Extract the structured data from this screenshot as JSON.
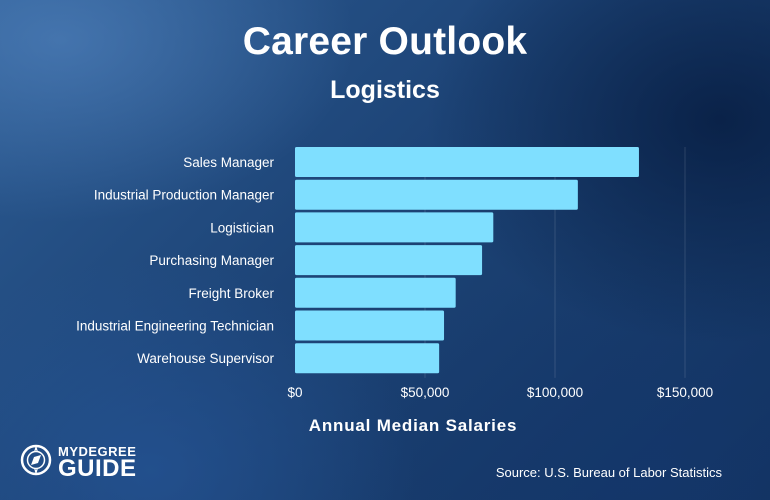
{
  "header": {
    "title": "Career Outlook",
    "subtitle": "Logistics"
  },
  "chart_data": {
    "type": "bar",
    "orientation": "horizontal",
    "categories": [
      "Sales Manager",
      "Industrial Production Manager",
      "Logistician",
      "Purchasing Manager",
      "Freight Broker",
      "Industrial Engineering Technician",
      "Warehouse Supervisor"
    ],
    "values": [
      132290,
      108790,
      76270,
      71950,
      61800,
      57320,
      55440
    ],
    "xlabel": "Annual Median Salaries",
    "xlim": [
      0,
      150000
    ],
    "xticks": [
      0,
      50000,
      100000,
      150000
    ],
    "xtick_labels": [
      "$0",
      "$50,000",
      "$100,000",
      "$150,000"
    ],
    "grid": true,
    "bar_color": "#7fdfff",
    "legend": "none"
  },
  "footer": {
    "source": "Source: U.S. Bureau of Labor Statistics",
    "logo_top": "MYDEGREE",
    "logo_bottom": "GUIDE"
  }
}
